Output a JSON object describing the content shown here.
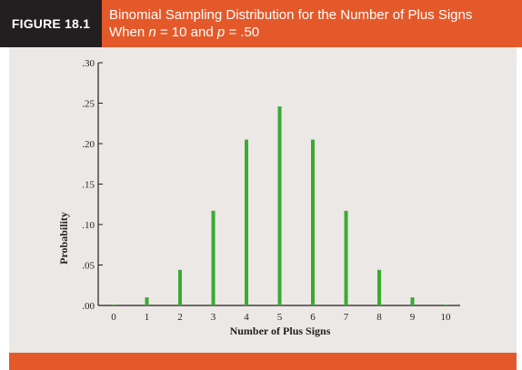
{
  "figure": {
    "label": "FIGURE 18.1",
    "title_line1": "Binomial Sampling Distribution for the Number of Plus Signs",
    "title_line2_prefix": "When ",
    "title_n_var": "n",
    "title_n_eq": " = 10 and ",
    "title_p_var": "p",
    "title_p_eq": " = .50"
  },
  "colors": {
    "accent": "#e4592a",
    "label_bg": "#231f20",
    "panel_bg": "#ece8e5",
    "bar": "#3aaa35"
  },
  "chart_data": {
    "type": "bar",
    "xlabel": "Number of Plus Signs",
    "ylabel": "Probability",
    "categories": [
      "0",
      "1",
      "2",
      "3",
      "4",
      "5",
      "6",
      "7",
      "8",
      "9",
      "10"
    ],
    "values": [
      0.001,
      0.01,
      0.044,
      0.117,
      0.205,
      0.246,
      0.205,
      0.117,
      0.044,
      0.01,
      0.001
    ],
    "ylim": [
      0,
      0.3
    ],
    "yticks": [
      ".00",
      ".05",
      ".10",
      ".15",
      ".20",
      ".25",
      ".30"
    ],
    "grid": false
  }
}
